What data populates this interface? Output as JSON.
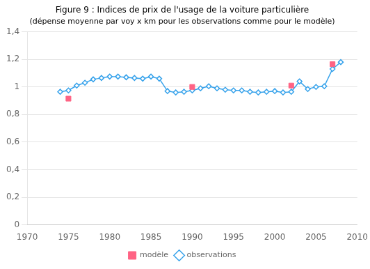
{
  "chart_data": {
    "type": "line",
    "title": "Figure 9 : Indices de prix de l'usage de la voiture particulière",
    "subtitle": "(dépense moyenne par voy x km pour les observations comme pour le modèle)",
    "series": [
      {
        "name": "observations",
        "type": "line",
        "marker": "diamond",
        "x": [
          1974,
          1975,
          1976,
          1977,
          1978,
          1979,
          1980,
          1981,
          1982,
          1983,
          1984,
          1985,
          1986,
          1987,
          1988,
          1989,
          1990,
          1991,
          1992,
          1993,
          1994,
          1995,
          1996,
          1997,
          1998,
          1999,
          2000,
          2001,
          2002,
          2003,
          2004,
          2005,
          2006,
          2007,
          2008
        ],
        "values": [
          0.965,
          0.975,
          1.01,
          1.03,
          1.055,
          1.065,
          1.075,
          1.075,
          1.07,
          1.065,
          1.06,
          1.075,
          1.06,
          0.97,
          0.96,
          0.965,
          0.975,
          0.99,
          1.005,
          0.99,
          0.98,
          0.975,
          0.975,
          0.965,
          0.96,
          0.965,
          0.97,
          0.96,
          0.965,
          1.04,
          0.985,
          1.0,
          1.005,
          1.13,
          1.18
        ]
      },
      {
        "name": "modèle",
        "type": "scatter",
        "marker": "square",
        "x": [
          1975,
          1990,
          2002,
          2007
        ],
        "values": [
          0.915,
          1.0,
          1.01,
          1.165
        ]
      }
    ],
    "xlim": [
      1970,
      2010
    ],
    "xticks": [
      1970,
      1975,
      1980,
      1985,
      1990,
      1995,
      2000,
      2005,
      2010
    ],
    "ylim": [
      0,
      1.4
    ],
    "yticks": [
      0,
      {
        "value": 0.2,
        "label": "0,2"
      },
      {
        "value": 0.4,
        "label": "0,4"
      },
      {
        "value": 0.6,
        "label": "0,6"
      },
      {
        "value": 0.8,
        "label": "0,8"
      },
      1,
      {
        "value": 1.2,
        "label": "1,2"
      },
      {
        "value": 1.4,
        "label": "1,4"
      }
    ],
    "grid": "y",
    "legend": "bottom"
  }
}
